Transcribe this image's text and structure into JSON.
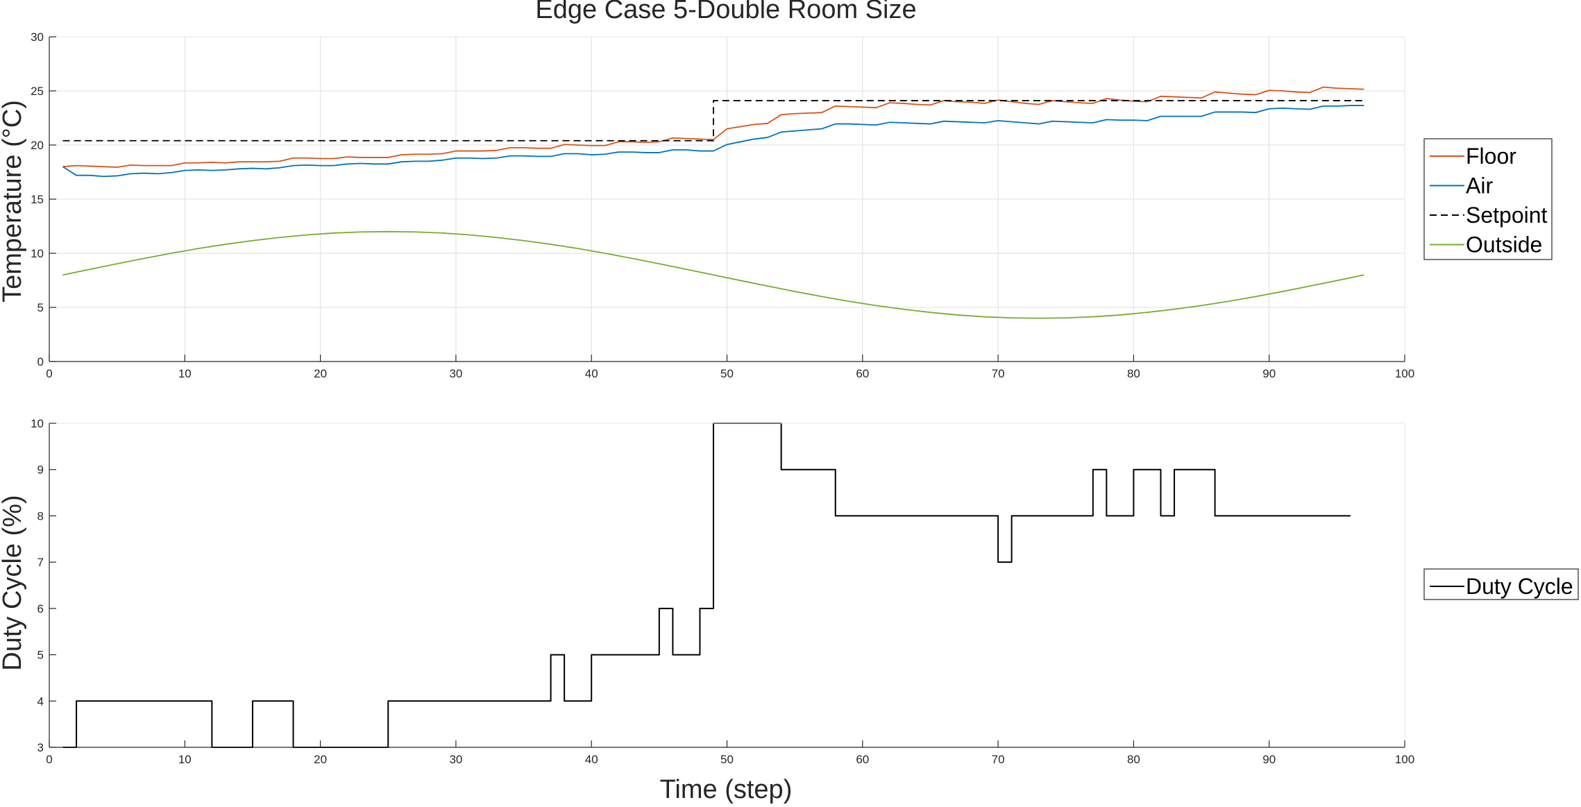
{
  "chart_data": [
    {
      "type": "line",
      "title": "Edge Case 5-Double Room Size",
      "xlabel": "",
      "ylabel": "Temperature (°C)",
      "xlim": [
        0,
        100
      ],
      "ylim": [
        0,
        30
      ],
      "xticks": [
        0,
        10,
        20,
        30,
        40,
        50,
        60,
        70,
        80,
        90,
        100
      ],
      "yticks": [
        0,
        5,
        10,
        15,
        20,
        25,
        30
      ],
      "grid": true,
      "legend_position": "right",
      "series": [
        {
          "name": "Floor",
          "color": "#D95319",
          "dash": "",
          "x": [
            1,
            2,
            3,
            4,
            5,
            6,
            7,
            8,
            9,
            10,
            11,
            12,
            13,
            14,
            15,
            16,
            17,
            18,
            19,
            20,
            21,
            22,
            23,
            24,
            25,
            26,
            27,
            28,
            29,
            30,
            31,
            32,
            33,
            34,
            35,
            36,
            37,
            38,
            39,
            40,
            41,
            42,
            43,
            44,
            45,
            46,
            47,
            48,
            49,
            50,
            51,
            52,
            53,
            54,
            55,
            56,
            57,
            58,
            59,
            60,
            61,
            62,
            63,
            64,
            65,
            66,
            67,
            68,
            69,
            70,
            71,
            72,
            73,
            74,
            75,
            76,
            77,
            78,
            79,
            80,
            81,
            82,
            83,
            84,
            85,
            86,
            87,
            88,
            89,
            90,
            91,
            92,
            93,
            94,
            95,
            96,
            97
          ],
          "y": [
            18.0,
            18.1,
            18.05,
            18.0,
            17.95,
            18.15,
            18.1,
            18.1,
            18.1,
            18.35,
            18.35,
            18.4,
            18.35,
            18.45,
            18.45,
            18.45,
            18.5,
            18.8,
            18.8,
            18.75,
            18.75,
            18.9,
            18.85,
            18.85,
            18.85,
            19.1,
            19.15,
            19.15,
            19.2,
            19.45,
            19.45,
            19.45,
            19.5,
            19.75,
            19.75,
            19.7,
            19.7,
            20.05,
            20.0,
            19.95,
            19.95,
            20.3,
            20.3,
            20.25,
            20.3,
            20.65,
            20.6,
            20.55,
            20.5,
            21.5,
            21.7,
            21.9,
            22.0,
            22.8,
            22.9,
            22.95,
            23.0,
            23.6,
            23.55,
            23.5,
            23.45,
            23.9,
            23.85,
            23.75,
            23.7,
            24.1,
            24.0,
            23.95,
            23.85,
            24.15,
            24.0,
            23.85,
            23.75,
            24.1,
            24.0,
            23.9,
            23.85,
            24.3,
            24.15,
            24.05,
            24.0,
            24.5,
            24.45,
            24.4,
            24.35,
            24.9,
            24.8,
            24.7,
            24.65,
            25.05,
            25.0,
            24.9,
            24.85,
            25.35,
            25.25,
            25.2,
            25.15
          ]
        },
        {
          "name": "Air",
          "color": "#0072BD",
          "dash": "",
          "x": [
            1,
            2,
            3,
            4,
            5,
            6,
            7,
            8,
            9,
            10,
            11,
            12,
            13,
            14,
            15,
            16,
            17,
            18,
            19,
            20,
            21,
            22,
            23,
            24,
            25,
            26,
            27,
            28,
            29,
            30,
            31,
            32,
            33,
            34,
            35,
            36,
            37,
            38,
            39,
            40,
            41,
            42,
            43,
            44,
            45,
            46,
            47,
            48,
            49,
            50,
            51,
            52,
            53,
            54,
            55,
            56,
            57,
            58,
            59,
            60,
            61,
            62,
            63,
            64,
            65,
            66,
            67,
            68,
            69,
            70,
            71,
            72,
            73,
            74,
            75,
            76,
            77,
            78,
            79,
            80,
            81,
            82,
            83,
            84,
            85,
            86,
            87,
            88,
            89,
            90,
            91,
            92,
            93,
            94,
            95,
            96,
            97
          ],
          "y": [
            18.0,
            17.2,
            17.2,
            17.1,
            17.15,
            17.35,
            17.4,
            17.35,
            17.45,
            17.65,
            17.7,
            17.65,
            17.7,
            17.8,
            17.85,
            17.8,
            17.9,
            18.1,
            18.15,
            18.1,
            18.1,
            18.25,
            18.3,
            18.25,
            18.25,
            18.45,
            18.5,
            18.5,
            18.6,
            18.8,
            18.8,
            18.75,
            18.8,
            19.0,
            19.0,
            18.95,
            18.95,
            19.2,
            19.2,
            19.1,
            19.15,
            19.35,
            19.35,
            19.3,
            19.3,
            19.55,
            19.55,
            19.45,
            19.45,
            20.05,
            20.3,
            20.55,
            20.7,
            21.2,
            21.3,
            21.4,
            21.5,
            21.95,
            21.95,
            21.9,
            21.85,
            22.1,
            22.05,
            22.0,
            21.95,
            22.2,
            22.15,
            22.1,
            22.05,
            22.25,
            22.15,
            22.05,
            21.95,
            22.2,
            22.15,
            22.1,
            22.05,
            22.35,
            22.3,
            22.3,
            22.25,
            22.65,
            22.65,
            22.65,
            22.65,
            23.05,
            23.05,
            23.05,
            23.0,
            23.35,
            23.4,
            23.35,
            23.3,
            23.6,
            23.6,
            23.65,
            23.65
          ]
        },
        {
          "name": "Setpoint",
          "color": "#000000",
          "dash": "10,6",
          "x": [
            1,
            49,
            49,
            97
          ],
          "y": [
            20.4,
            20.4,
            24.1,
            24.1
          ]
        },
        {
          "name": "Outside",
          "color": "#77AC30",
          "dash": "",
          "x": [
            1,
            3,
            5,
            7,
            9,
            11,
            13,
            15,
            17,
            19,
            21,
            23,
            25,
            27,
            29,
            31,
            33,
            35,
            37,
            39,
            41,
            43,
            45,
            47,
            49,
            51,
            53,
            55,
            57,
            59,
            61,
            63,
            65,
            67,
            69,
            71,
            73,
            75,
            77,
            79,
            81,
            83,
            85,
            87,
            89,
            91,
            93,
            95,
            97
          ],
          "y": [
            8.0,
            8.52,
            9.03,
            9.53,
            10.0,
            10.44,
            10.83,
            11.17,
            11.46,
            11.7,
            11.87,
            11.97,
            12.0,
            11.97,
            11.87,
            11.7,
            11.46,
            11.17,
            10.83,
            10.44,
            10.0,
            9.53,
            9.03,
            8.52,
            8.0,
            7.48,
            6.97,
            6.47,
            6.0,
            5.56,
            5.17,
            4.83,
            4.54,
            4.3,
            4.13,
            4.03,
            4.0,
            4.03,
            4.13,
            4.3,
            4.54,
            4.83,
            5.17,
            5.56,
            6.0,
            6.47,
            6.97,
            7.48,
            8.0
          ]
        }
      ]
    },
    {
      "type": "line",
      "title": "",
      "xlabel": "Time (step)",
      "ylabel": "Duty Cycle (%)",
      "xlim": [
        0,
        100
      ],
      "ylim": [
        3,
        10
      ],
      "xticks": [
        0,
        10,
        20,
        30,
        40,
        50,
        60,
        70,
        80,
        90,
        100
      ],
      "yticks": [
        3,
        4,
        5,
        6,
        7,
        8,
        9,
        10
      ],
      "grid": false,
      "legend_position": "right",
      "series": [
        {
          "name": "Duty Cycle",
          "color": "#000000",
          "dash": "",
          "step": true,
          "x": [
            1,
            2,
            12,
            15,
            18,
            25,
            37,
            38,
            40,
            45,
            46,
            48,
            49,
            54,
            58,
            70,
            71,
            77,
            78,
            80,
            82,
            83,
            86,
            96
          ],
          "y": [
            3,
            4,
            3,
            4,
            3,
            4,
            5,
            4,
            5,
            6,
            5,
            6,
            10,
            9,
            8,
            7,
            8,
            9,
            8,
            9,
            8,
            9,
            8,
            8
          ]
        }
      ]
    }
  ]
}
